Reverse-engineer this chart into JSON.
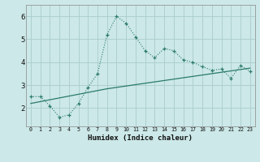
{
  "xlabel": "Humidex (Indice chaleur)",
  "bg_color": "#cce8e8",
  "grid_color": "#aacccc",
  "line_color": "#2a7a6a",
  "x_values": [
    0,
    1,
    2,
    3,
    4,
    5,
    6,
    7,
    8,
    9,
    10,
    11,
    12,
    13,
    14,
    15,
    16,
    17,
    18,
    19,
    20,
    21,
    22,
    23
  ],
  "line1_y": [
    2.5,
    2.5,
    2.1,
    1.6,
    1.7,
    2.2,
    2.9,
    3.5,
    5.2,
    6.0,
    5.7,
    5.1,
    4.5,
    4.2,
    4.6,
    4.5,
    4.1,
    4.0,
    3.8,
    3.65,
    3.7,
    3.3,
    3.85,
    3.6
  ],
  "line2_y": [
    2.2,
    2.28,
    2.36,
    2.44,
    2.52,
    2.6,
    2.68,
    2.76,
    2.84,
    2.9,
    2.96,
    3.02,
    3.08,
    3.14,
    3.2,
    3.26,
    3.32,
    3.38,
    3.44,
    3.5,
    3.56,
    3.62,
    3.68,
    3.74
  ],
  "ylim": [
    1.2,
    6.5
  ],
  "yticks": [
    2,
    3,
    4,
    5,
    6
  ],
  "xlim": [
    -0.5,
    23.5
  ],
  "xtick_labels": [
    "0",
    "1",
    "2",
    "3",
    "4",
    "5",
    "6",
    "7",
    "8",
    "9",
    "10",
    "11",
    "12",
    "13",
    "14",
    "15",
    "16",
    "17",
    "18",
    "19",
    "20",
    "21",
    "22",
    "23"
  ]
}
